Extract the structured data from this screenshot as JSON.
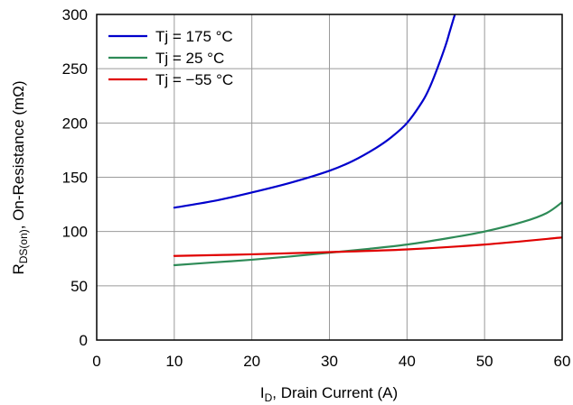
{
  "chart_data": {
    "type": "line",
    "xlabel": {
      "main": "I",
      "sub": "D",
      "rest": ", Drain Current (A)"
    },
    "ylabel": {
      "main": "R",
      "sub": "DS(on)",
      "rest": ", On-Resistance (mΩ)"
    },
    "xlim": [
      0,
      60
    ],
    "ylim": [
      0,
      300
    ],
    "xticks": [
      0,
      10,
      20,
      30,
      40,
      50,
      60
    ],
    "yticks": [
      0,
      50,
      100,
      150,
      200,
      250,
      300
    ],
    "grid": true,
    "legend_position": "top-left",
    "series": [
      {
        "name": "Tj = 175 °C",
        "color": "#0000cc",
        "x": [
          10,
          15,
          20,
          25,
          30,
          33,
          36,
          38,
          40,
          42,
          43,
          44,
          45,
          45.5,
          46,
          46.4
        ],
        "y": [
          122,
          128,
          136,
          145,
          156,
          165,
          177,
          187,
          200,
          220,
          234,
          252,
          272,
          284,
          296,
          305
        ]
      },
      {
        "name": "Tj = 25 °C",
        "color": "#2e8b57",
        "x": [
          10,
          15,
          20,
          25,
          30,
          35,
          40,
          45,
          50,
          55,
          58,
          60
        ],
        "y": [
          69,
          71.5,
          74,
          77,
          80.5,
          84,
          88,
          93.5,
          100,
          109,
          117,
          127
        ]
      },
      {
        "name": "Tj = −55 °C",
        "color": "#e00000",
        "x": [
          10,
          20,
          30,
          40,
          50,
          60
        ],
        "y": [
          77.5,
          79,
          81,
          83.5,
          88,
          94.5
        ]
      }
    ]
  }
}
